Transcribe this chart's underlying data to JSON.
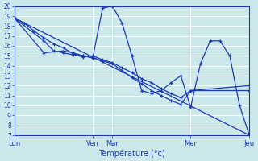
{
  "background_color": "#cce8eb",
  "grid_color": "#b8d8dc",
  "line_color": "#1a3ab5",
  "xlabel": "Température (°c)",
  "ylim": [
    7,
    20
  ],
  "ytick_min": 7,
  "ytick_max": 20,
  "xlim": [
    0,
    24
  ],
  "day_labels": [
    "Lun",
    "Ven",
    "Mar",
    "Mer",
    "Jeu"
  ],
  "day_x": [
    0,
    8,
    10,
    18,
    24
  ],
  "line1_x": [
    0,
    1,
    2,
    3,
    4,
    5,
    6,
    7,
    8,
    9,
    10,
    11,
    12,
    13,
    14,
    15,
    16,
    17,
    18,
    19,
    20,
    21,
    22,
    23,
    24
  ],
  "line1_y": [
    18.8,
    18.3,
    17.5,
    16.8,
    16.2,
    15.8,
    15.2,
    15.0,
    14.8,
    19.8,
    20.0,
    18.3,
    15.0,
    11.5,
    11.2,
    11.5,
    12.3,
    13.0,
    9.8,
    14.2,
    16.5,
    16.5,
    15.0,
    10.0,
    7.0
  ],
  "line2_x": [
    0,
    24
  ],
  "line2_y": [
    18.8,
    7.0
  ],
  "line3_x": [
    0,
    3,
    4,
    5,
    6,
    7,
    8,
    9,
    10,
    11,
    12,
    13,
    14,
    15,
    16,
    17,
    18,
    24
  ],
  "line3_y": [
    18.8,
    16.5,
    15.5,
    15.3,
    15.1,
    14.9,
    15.0,
    14.6,
    14.3,
    13.8,
    13.3,
    12.7,
    12.3,
    11.7,
    11.2,
    10.8,
    11.5,
    11.5
  ],
  "line4_x": [
    0,
    3,
    5,
    6,
    7,
    8,
    9,
    10,
    11,
    12,
    13,
    14,
    15,
    16,
    17,
    18,
    24
  ],
  "line4_y": [
    18.8,
    15.3,
    15.5,
    15.3,
    15.0,
    14.8,
    14.5,
    14.2,
    13.5,
    12.8,
    12.2,
    11.5,
    11.0,
    10.5,
    10.1,
    11.5,
    12.0
  ]
}
